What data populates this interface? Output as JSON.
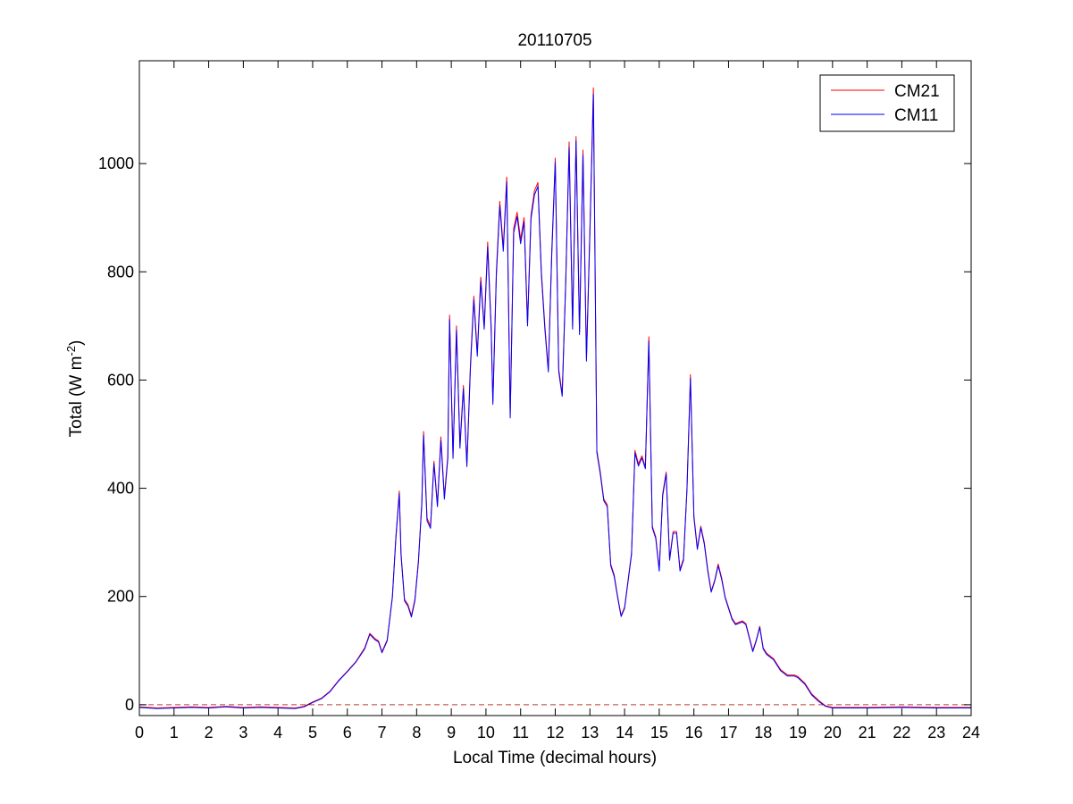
{
  "chart_data": {
    "type": "line",
    "title": "20110705",
    "xlabel": "Local Time (decimal hours)",
    "ylabel": {
      "base": "Total (W m",
      "superscript": "-2",
      "close": ")"
    },
    "xlim": [
      0,
      24
    ],
    "ylim": [
      -20,
      1190
    ],
    "x_ticks": [
      0,
      1,
      2,
      3,
      4,
      5,
      6,
      7,
      8,
      9,
      10,
      11,
      12,
      13,
      14,
      15,
      16,
      17,
      18,
      19,
      20,
      21,
      22,
      23,
      24
    ],
    "y_ticks": [
      0,
      200,
      400,
      600,
      800,
      1000
    ],
    "grid": false,
    "legend_position": "top-right",
    "zero_reference_line": {
      "y": 0,
      "style": "dashed",
      "color": "#c0392b"
    },
    "series": [
      {
        "name": "CM21",
        "color": "#ff0000",
        "points": [
          [
            0.0,
            -4
          ],
          [
            0.5,
            -6
          ],
          [
            1.0,
            -5
          ],
          [
            1.5,
            -4
          ],
          [
            2.0,
            -5
          ],
          [
            2.5,
            -3
          ],
          [
            3.0,
            -5
          ],
          [
            3.5,
            -4
          ],
          [
            4.0,
            -5
          ],
          [
            4.5,
            -6
          ],
          [
            4.75,
            -3
          ],
          [
            5.0,
            5
          ],
          [
            5.25,
            12
          ],
          [
            5.5,
            25
          ],
          [
            5.75,
            45
          ],
          [
            6.0,
            62
          ],
          [
            6.25,
            80
          ],
          [
            6.5,
            105
          ],
          [
            6.65,
            132
          ],
          [
            6.8,
            122
          ],
          [
            6.9,
            118
          ],
          [
            7.0,
            98
          ],
          [
            7.15,
            120
          ],
          [
            7.3,
            200
          ],
          [
            7.4,
            310
          ],
          [
            7.5,
            395
          ],
          [
            7.55,
            280
          ],
          [
            7.65,
            195
          ],
          [
            7.75,
            185
          ],
          [
            7.85,
            165
          ],
          [
            7.95,
            195
          ],
          [
            8.05,
            265
          ],
          [
            8.15,
            375
          ],
          [
            8.2,
            505
          ],
          [
            8.3,
            345
          ],
          [
            8.4,
            330
          ],
          [
            8.5,
            450
          ],
          [
            8.6,
            370
          ],
          [
            8.7,
            495
          ],
          [
            8.8,
            385
          ],
          [
            8.9,
            460
          ],
          [
            8.95,
            720
          ],
          [
            9.05,
            460
          ],
          [
            9.15,
            700
          ],
          [
            9.25,
            480
          ],
          [
            9.35,
            590
          ],
          [
            9.45,
            445
          ],
          [
            9.55,
            625
          ],
          [
            9.65,
            755
          ],
          [
            9.75,
            650
          ],
          [
            9.85,
            790
          ],
          [
            9.95,
            700
          ],
          [
            10.05,
            855
          ],
          [
            10.15,
            700
          ],
          [
            10.2,
            560
          ],
          [
            10.3,
            800
          ],
          [
            10.4,
            930
          ],
          [
            10.5,
            845
          ],
          [
            10.6,
            975
          ],
          [
            10.7,
            535
          ],
          [
            10.8,
            880
          ],
          [
            10.9,
            910
          ],
          [
            11.0,
            860
          ],
          [
            11.1,
            900
          ],
          [
            11.2,
            705
          ],
          [
            11.3,
            905
          ],
          [
            11.4,
            950
          ],
          [
            11.5,
            965
          ],
          [
            11.6,
            800
          ],
          [
            11.7,
            700
          ],
          [
            11.8,
            620
          ],
          [
            11.9,
            840
          ],
          [
            12.0,
            1010
          ],
          [
            12.1,
            620
          ],
          [
            12.2,
            575
          ],
          [
            12.3,
            780
          ],
          [
            12.4,
            1040
          ],
          [
            12.5,
            700
          ],
          [
            12.6,
            1050
          ],
          [
            12.7,
            690
          ],
          [
            12.8,
            1025
          ],
          [
            12.9,
            640
          ],
          [
            13.0,
            880
          ],
          [
            13.1,
            1140
          ],
          [
            13.2,
            470
          ],
          [
            13.3,
            430
          ],
          [
            13.4,
            380
          ],
          [
            13.5,
            370
          ],
          [
            13.6,
            260
          ],
          [
            13.7,
            240
          ],
          [
            13.8,
            200
          ],
          [
            13.9,
            165
          ],
          [
            14.0,
            180
          ],
          [
            14.2,
            280
          ],
          [
            14.3,
            470
          ],
          [
            14.4,
            445
          ],
          [
            14.5,
            460
          ],
          [
            14.6,
            440
          ],
          [
            14.7,
            680
          ],
          [
            14.8,
            330
          ],
          [
            14.9,
            310
          ],
          [
            15.0,
            250
          ],
          [
            15.1,
            390
          ],
          [
            15.2,
            430
          ],
          [
            15.3,
            270
          ],
          [
            15.4,
            320
          ],
          [
            15.5,
            320
          ],
          [
            15.6,
            250
          ],
          [
            15.7,
            270
          ],
          [
            15.8,
            400
          ],
          [
            15.9,
            610
          ],
          [
            16.0,
            350
          ],
          [
            16.1,
            290
          ],
          [
            16.2,
            330
          ],
          [
            16.3,
            300
          ],
          [
            16.4,
            250
          ],
          [
            16.5,
            210
          ],
          [
            16.6,
            230
          ],
          [
            16.7,
            260
          ],
          [
            16.8,
            235
          ],
          [
            16.9,
            200
          ],
          [
            17.0,
            180
          ],
          [
            17.1,
            160
          ],
          [
            17.2,
            150
          ],
          [
            17.4,
            155
          ],
          [
            17.5,
            150
          ],
          [
            17.6,
            125
          ],
          [
            17.7,
            100
          ],
          [
            17.8,
            120
          ],
          [
            17.9,
            145
          ],
          [
            18.0,
            105
          ],
          [
            18.1,
            95
          ],
          [
            18.3,
            85
          ],
          [
            18.5,
            65
          ],
          [
            18.7,
            55
          ],
          [
            18.9,
            55
          ],
          [
            19.0,
            52
          ],
          [
            19.2,
            40
          ],
          [
            19.4,
            20
          ],
          [
            19.6,
            8
          ],
          [
            19.8,
            -2
          ],
          [
            20.0,
            -5
          ],
          [
            21.0,
            -5
          ],
          [
            22.0,
            -4
          ],
          [
            23.0,
            -5
          ],
          [
            24.0,
            -5
          ]
        ]
      },
      {
        "name": "CM11",
        "color": "#0000ff",
        "points": [
          [
            0.0,
            -5
          ],
          [
            0.5,
            -7
          ],
          [
            1.0,
            -6
          ],
          [
            1.5,
            -5
          ],
          [
            2.0,
            -6
          ],
          [
            2.5,
            -4
          ],
          [
            3.0,
            -6
          ],
          [
            3.5,
            -5
          ],
          [
            4.0,
            -6
          ],
          [
            4.5,
            -7
          ],
          [
            4.75,
            -4
          ],
          [
            5.0,
            4
          ],
          [
            5.25,
            11
          ],
          [
            5.5,
            24
          ],
          [
            5.75,
            44
          ],
          [
            6.0,
            61
          ],
          [
            6.25,
            79
          ],
          [
            6.5,
            103
          ],
          [
            6.65,
            130
          ],
          [
            6.8,
            120
          ],
          [
            6.9,
            116
          ],
          [
            7.0,
            96
          ],
          [
            7.15,
            118
          ],
          [
            7.3,
            198
          ],
          [
            7.4,
            306
          ],
          [
            7.5,
            390
          ],
          [
            7.55,
            276
          ],
          [
            7.65,
            192
          ],
          [
            7.75,
            182
          ],
          [
            7.85,
            162
          ],
          [
            7.95,
            192
          ],
          [
            8.05,
            262
          ],
          [
            8.15,
            370
          ],
          [
            8.2,
            498
          ],
          [
            8.3,
            340
          ],
          [
            8.4,
            326
          ],
          [
            8.5,
            445
          ],
          [
            8.6,
            366
          ],
          [
            8.7,
            488
          ],
          [
            8.8,
            380
          ],
          [
            8.9,
            455
          ],
          [
            8.95,
            712
          ],
          [
            9.05,
            455
          ],
          [
            9.15,
            692
          ],
          [
            9.25,
            474
          ],
          [
            9.35,
            584
          ],
          [
            9.45,
            440
          ],
          [
            9.55,
            618
          ],
          [
            9.65,
            748
          ],
          [
            9.75,
            644
          ],
          [
            9.85,
            782
          ],
          [
            9.95,
            694
          ],
          [
            10.05,
            846
          ],
          [
            10.15,
            694
          ],
          [
            10.2,
            555
          ],
          [
            10.3,
            792
          ],
          [
            10.4,
            922
          ],
          [
            10.5,
            838
          ],
          [
            10.6,
            966
          ],
          [
            10.7,
            530
          ],
          [
            10.8,
            872
          ],
          [
            10.9,
            902
          ],
          [
            11.0,
            852
          ],
          [
            11.1,
            892
          ],
          [
            11.2,
            700
          ],
          [
            11.3,
            898
          ],
          [
            11.4,
            942
          ],
          [
            11.5,
            958
          ],
          [
            11.6,
            794
          ],
          [
            11.7,
            694
          ],
          [
            11.8,
            615
          ],
          [
            11.9,
            833
          ],
          [
            12.0,
            1002
          ],
          [
            12.1,
            615
          ],
          [
            12.2,
            570
          ],
          [
            12.3,
            774
          ],
          [
            12.4,
            1030
          ],
          [
            12.5,
            694
          ],
          [
            12.6,
            1042
          ],
          [
            12.7,
            684
          ],
          [
            12.8,
            1016
          ],
          [
            12.9,
            635
          ],
          [
            13.0,
            872
          ],
          [
            13.1,
            1128
          ],
          [
            13.2,
            466
          ],
          [
            13.3,
            426
          ],
          [
            13.4,
            377
          ],
          [
            13.5,
            366
          ],
          [
            13.6,
            257
          ],
          [
            13.7,
            237
          ],
          [
            13.8,
            198
          ],
          [
            13.9,
            163
          ],
          [
            14.0,
            178
          ],
          [
            14.2,
            277
          ],
          [
            14.3,
            465
          ],
          [
            14.4,
            441
          ],
          [
            14.5,
            456
          ],
          [
            14.6,
            436
          ],
          [
            14.7,
            672
          ],
          [
            14.8,
            327
          ],
          [
            14.9,
            307
          ],
          [
            15.0,
            247
          ],
          [
            15.1,
            386
          ],
          [
            15.2,
            426
          ],
          [
            15.3,
            267
          ],
          [
            15.4,
            317
          ],
          [
            15.5,
            317
          ],
          [
            15.6,
            247
          ],
          [
            15.7,
            267
          ],
          [
            15.8,
            396
          ],
          [
            15.9,
            603
          ],
          [
            16.0,
            346
          ],
          [
            16.1,
            287
          ],
          [
            16.2,
            327
          ],
          [
            16.3,
            297
          ],
          [
            16.4,
            247
          ],
          [
            16.5,
            208
          ],
          [
            16.6,
            228
          ],
          [
            16.7,
            257
          ],
          [
            16.8,
            232
          ],
          [
            16.9,
            198
          ],
          [
            17.0,
            178
          ],
          [
            17.1,
            158
          ],
          [
            17.2,
            148
          ],
          [
            17.4,
            153
          ],
          [
            17.5,
            148
          ],
          [
            17.6,
            123
          ],
          [
            17.7,
            98
          ],
          [
            17.8,
            118
          ],
          [
            17.9,
            143
          ],
          [
            18.0,
            103
          ],
          [
            18.1,
            93
          ],
          [
            18.3,
            83
          ],
          [
            18.5,
            63
          ],
          [
            18.7,
            53
          ],
          [
            18.9,
            53
          ],
          [
            19.0,
            50
          ],
          [
            19.2,
            38
          ],
          [
            19.4,
            18
          ],
          [
            19.6,
            6
          ],
          [
            19.8,
            -3
          ],
          [
            20.0,
            -6
          ],
          [
            21.0,
            -6
          ],
          [
            22.0,
            -5
          ],
          [
            23.0,
            -6
          ],
          [
            24.0,
            -6
          ]
        ]
      }
    ]
  }
}
